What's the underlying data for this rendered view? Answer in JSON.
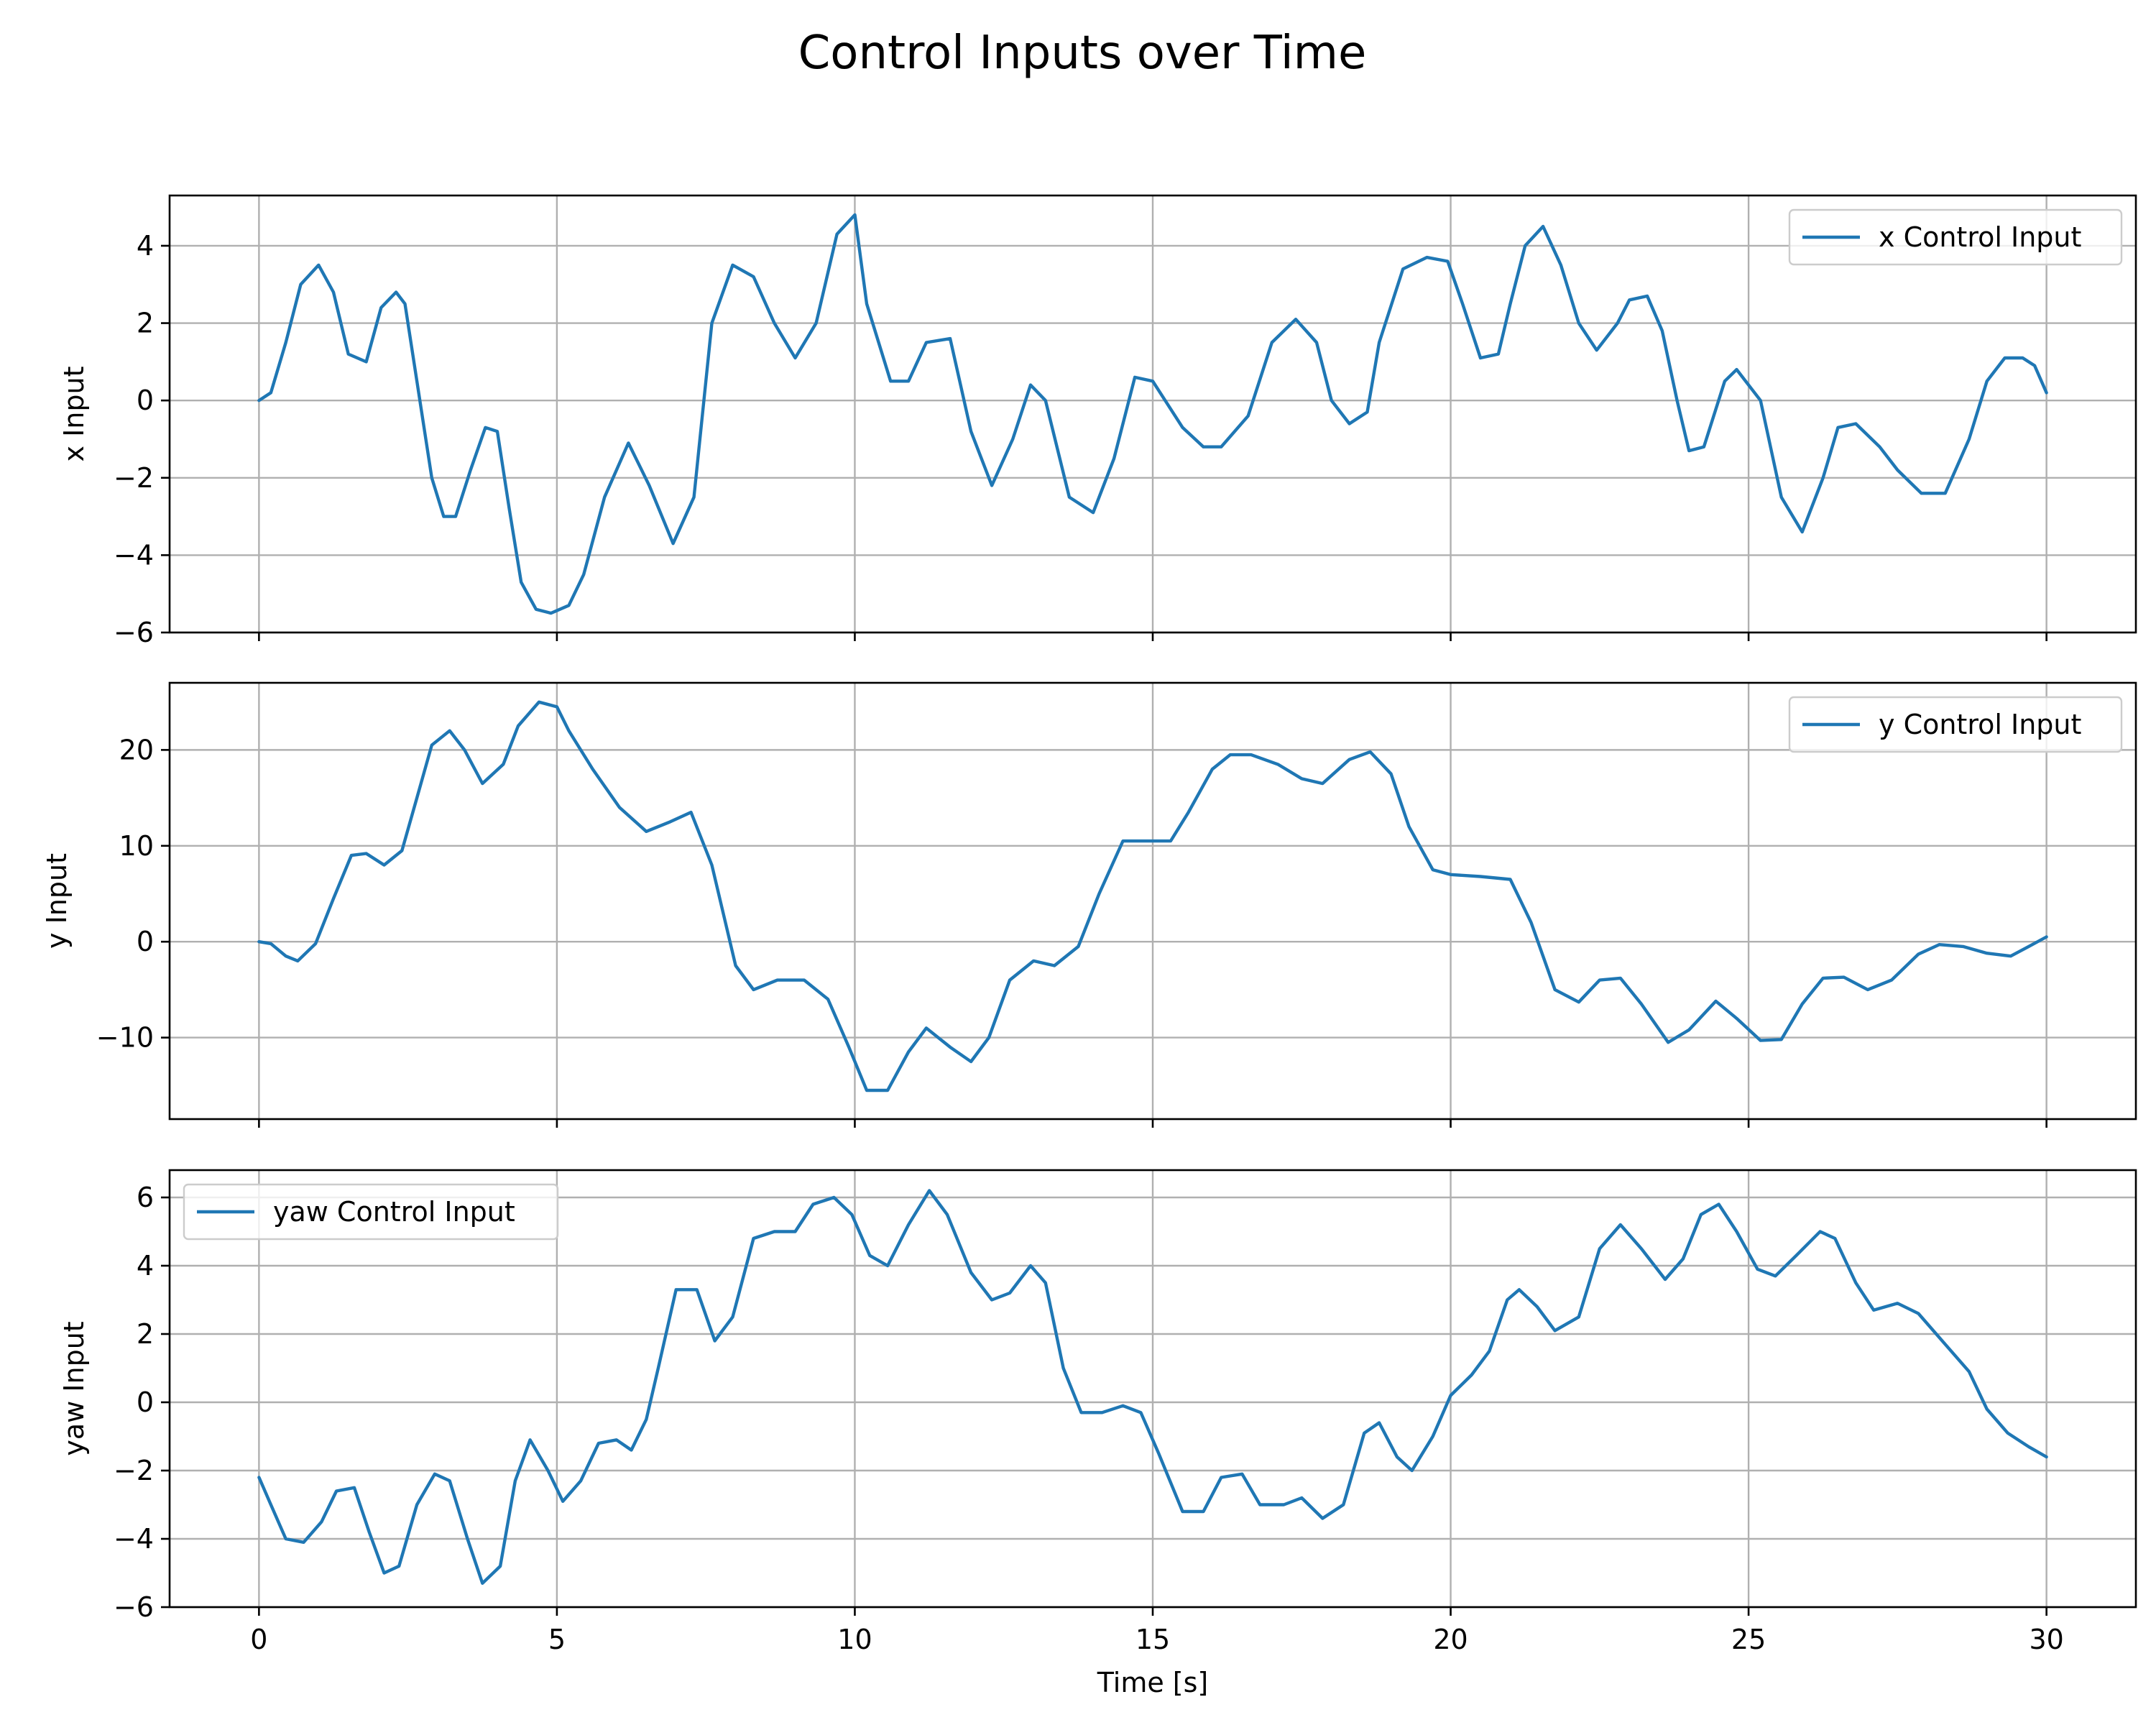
{
  "title": "Control Inputs over Time",
  "colors": {
    "series": "#1f77b4",
    "grid": "#b0b0b0",
    "axes": "#000000"
  },
  "chart_data": {
    "type": "line",
    "title": "Control Inputs over Time",
    "shared_x": true,
    "xlabel": "Time [s]",
    "xlim": [
      -1.5,
      31.5
    ],
    "xticks": [
      0,
      5,
      10,
      15,
      20,
      25,
      30
    ],
    "grid": true,
    "panels": [
      {
        "ylabel": "x Input",
        "ylim": [
          -6,
          5.3
        ],
        "yticks": [
          -6,
          -4,
          -2,
          0,
          2,
          4
        ],
        "ytick_labels": [
          "−6",
          "−4",
          "−2",
          "0",
          "2",
          "4"
        ],
        "legend_position": "upper right",
        "series": [
          {
            "name": "x Control Input",
            "color": "#1f77b4",
            "x": [
              0,
              0.2,
              0.45,
              0.7,
              1.0,
              1.25,
              1.5,
              1.8,
              2.05,
              2.3,
              2.45,
              2.65,
              2.9,
              3.1,
              3.3,
              3.55,
              3.8,
              4.0,
              4.2,
              4.4,
              4.65,
              4.9,
              5.2,
              5.45,
              5.8,
              6.2,
              6.55,
              6.95,
              7.3,
              7.6,
              7.95,
              8.3,
              8.65,
              9.0,
              9.35,
              9.7,
              10.0,
              10.2,
              10.6,
              10.9,
              11.2,
              11.6,
              11.95,
              12.3,
              12.65,
              12.95,
              13.2,
              13.6,
              14.0,
              14.35,
              14.7,
              15.0,
              15.5,
              15.85,
              16.15,
              16.6,
              17.0,
              17.4,
              17.75,
              18.0,
              18.3,
              18.6,
              18.8,
              19.2,
              19.6,
              19.95,
              20.2,
              20.5,
              20.8,
              21.0,
              21.25,
              21.55,
              21.85,
              22.15,
              22.45,
              22.8,
              23.0,
              23.3,
              23.55,
              23.8,
              24.0,
              24.25,
              24.6,
              24.8,
              25.2,
              25.55,
              25.9,
              26.25,
              26.5,
              26.8,
              27.2,
              27.5,
              27.9,
              28.3,
              28.7,
              29.0,
              29.3,
              29.6,
              29.8,
              30.0
            ],
            "values": [
              0.0,
              0.2,
              1.5,
              3.0,
              3.5,
              2.8,
              1.2,
              1.0,
              2.4,
              2.8,
              2.5,
              0.5,
              -2.0,
              -3.0,
              -3.0,
              -1.8,
              -0.7,
              -0.8,
              -2.8,
              -4.7,
              -5.4,
              -5.5,
              -5.3,
              -4.5,
              -2.5,
              -1.1,
              -2.2,
              -3.7,
              -2.5,
              2.0,
              3.5,
              3.2,
              2.0,
              1.1,
              2.0,
              4.3,
              4.8,
              2.5,
              0.5,
              0.5,
              1.5,
              1.6,
              -0.8,
              -2.2,
              -1.0,
              0.4,
              0.0,
              -2.5,
              -2.9,
              -1.5,
              0.6,
              0.5,
              -0.7,
              -1.2,
              -1.2,
              -0.4,
              1.5,
              2.1,
              1.5,
              0.0,
              -0.6,
              -0.3,
              1.5,
              3.4,
              3.7,
              3.6,
              2.5,
              1.1,
              1.2,
              2.5,
              4.0,
              4.5,
              3.5,
              2.0,
              1.3,
              2.0,
              2.6,
              2.7,
              1.8,
              0.0,
              -1.3,
              -1.2,
              0.5,
              0.8,
              0.0,
              -2.5,
              -3.4,
              -2.0,
              -0.7,
              -0.6,
              -1.2,
              -1.8,
              -2.4,
              -2.4,
              -1.0,
              0.5,
              1.1,
              1.1,
              0.9,
              0.2
            ]
          }
        ]
      },
      {
        "ylabel": "y Input",
        "ylim": [
          -18.5,
          27
        ],
        "yticks": [
          -10,
          0,
          10,
          20
        ],
        "ytick_labels": [
          "−10",
          "0",
          "10",
          "20"
        ],
        "legend_position": "upper right",
        "series": [
          {
            "name": "y Control Input",
            "color": "#1f77b4",
            "x": [
              0,
              0.2,
              0.45,
              0.65,
              0.95,
              1.25,
              1.55,
              1.8,
              2.1,
              2.4,
              2.65,
              2.9,
              3.2,
              3.45,
              3.75,
              4.1,
              4.35,
              4.7,
              5.0,
              5.2,
              5.6,
              6.05,
              6.5,
              6.9,
              7.25,
              7.6,
              8.0,
              8.3,
              8.7,
              9.15,
              9.55,
              9.9,
              10.2,
              10.55,
              10.9,
              11.2,
              11.6,
              11.95,
              12.25,
              12.6,
              13.0,
              13.35,
              13.75,
              14.1,
              14.5,
              14.9,
              15.3,
              15.6,
              16.0,
              16.3,
              16.65,
              17.1,
              17.5,
              17.85,
              18.3,
              18.65,
              19.0,
              19.3,
              19.7,
              20.0,
              20.5,
              21.0,
              21.35,
              21.75,
              22.15,
              22.5,
              22.85,
              23.2,
              23.65,
              24.0,
              24.45,
              24.8,
              25.2,
              25.55,
              25.9,
              26.25,
              26.6,
              27.0,
              27.4,
              27.85,
              28.2,
              28.6,
              29.0,
              29.4,
              29.7,
              30.0
            ],
            "values": [
              0.0,
              -0.2,
              -1.5,
              -2.0,
              -0.2,
              4.5,
              9.0,
              9.2,
              8.0,
              9.5,
              15.0,
              20.5,
              22.0,
              20.0,
              16.5,
              18.5,
              22.5,
              25.0,
              24.5,
              22.0,
              18.0,
              14.0,
              11.5,
              12.5,
              13.5,
              8.0,
              -2.5,
              -5.0,
              -4.0,
              -4.0,
              -6.0,
              -11.0,
              -15.5,
              -15.5,
              -11.5,
              -9.0,
              -11.0,
              -12.5,
              -10.0,
              -4.0,
              -2.0,
              -2.5,
              -0.5,
              5.0,
              10.5,
              10.5,
              10.5,
              13.5,
              18.0,
              19.5,
              19.5,
              18.5,
              17.0,
              16.5,
              19.0,
              19.8,
              17.5,
              12.0,
              7.5,
              7.0,
              6.8,
              6.5,
              2.0,
              -5.0,
              -6.3,
              -4.0,
              -3.8,
              -6.5,
              -10.5,
              -9.2,
              -6.2,
              -8.0,
              -10.3,
              -10.2,
              -6.5,
              -3.8,
              -3.7,
              -5.0,
              -4.0,
              -1.3,
              -0.3,
              -0.5,
              -1.2,
              -1.5,
              -0.5,
              0.5
            ]
          }
        ]
      },
      {
        "ylabel": "yaw Input",
        "ylim": [
          -6,
          6.8
        ],
        "yticks": [
          -6,
          -4,
          -2,
          0,
          2,
          4,
          6
        ],
        "ytick_labels": [
          "−6",
          "−4",
          "−2",
          "0",
          "2",
          "4",
          "6"
        ],
        "legend_position": "upper left",
        "series": [
          {
            "name": "yaw Control Input",
            "color": "#1f77b4",
            "x": [
              0,
              0.2,
              0.45,
              0.75,
              1.05,
              1.3,
              1.6,
              1.85,
              2.1,
              2.35,
              2.65,
              2.95,
              3.2,
              3.5,
              3.75,
              4.05,
              4.3,
              4.55,
              4.85,
              5.1,
              5.4,
              5.7,
              6.0,
              6.25,
              6.5,
              6.7,
              7.0,
              7.35,
              7.65,
              7.95,
              8.3,
              8.65,
              9.0,
              9.3,
              9.65,
              9.95,
              10.25,
              10.55,
              10.9,
              11.25,
              11.55,
              11.95,
              12.3,
              12.6,
              12.95,
              13.2,
              13.5,
              13.8,
              14.15,
              14.5,
              14.8,
              15.1,
              15.5,
              15.85,
              16.15,
              16.5,
              16.8,
              17.2,
              17.5,
              17.85,
              18.2,
              18.55,
              18.8,
              19.1,
              19.35,
              19.7,
              20.0,
              20.35,
              20.65,
              20.95,
              21.15,
              21.45,
              21.75,
              22.15,
              22.5,
              22.85,
              23.2,
              23.6,
              23.9,
              24.2,
              24.5,
              24.8,
              25.15,
              25.45,
              25.8,
              26.2,
              26.45,
              26.8,
              27.1,
              27.5,
              27.85,
              28.3,
              28.7,
              29.0,
              29.35,
              29.7,
              30.0
            ],
            "values": [
              -2.2,
              -3.0,
              -4.0,
              -4.1,
              -3.5,
              -2.6,
              -2.5,
              -3.8,
              -5.0,
              -4.8,
              -3.0,
              -2.1,
              -2.3,
              -4.0,
              -5.3,
              -4.8,
              -2.3,
              -1.1,
              -2.0,
              -2.9,
              -2.3,
              -1.2,
              -1.1,
              -1.4,
              -0.5,
              1.0,
              3.3,
              3.3,
              1.8,
              2.5,
              4.8,
              5.0,
              5.0,
              5.8,
              6.0,
              5.5,
              4.3,
              4.0,
              5.2,
              6.2,
              5.5,
              3.8,
              3.0,
              3.2,
              4.0,
              3.5,
              1.0,
              -0.3,
              -0.3,
              -0.1,
              -0.3,
              -1.5,
              -3.2,
              -3.2,
              -2.2,
              -2.1,
              -3.0,
              -3.0,
              -2.8,
              -3.4,
              -3.0,
              -0.9,
              -0.6,
              -1.6,
              -2.0,
              -1.0,
              0.2,
              0.8,
              1.5,
              3.0,
              3.3,
              2.8,
              2.1,
              2.5,
              4.5,
              5.2,
              4.5,
              3.6,
              4.2,
              5.5,
              5.8,
              5.0,
              3.9,
              3.7,
              4.3,
              5.0,
              4.8,
              3.5,
              2.7,
              2.9,
              2.6,
              1.7,
              0.9,
              -0.2,
              -0.9,
              -1.3,
              -1.6
            ]
          }
        ]
      }
    ]
  }
}
